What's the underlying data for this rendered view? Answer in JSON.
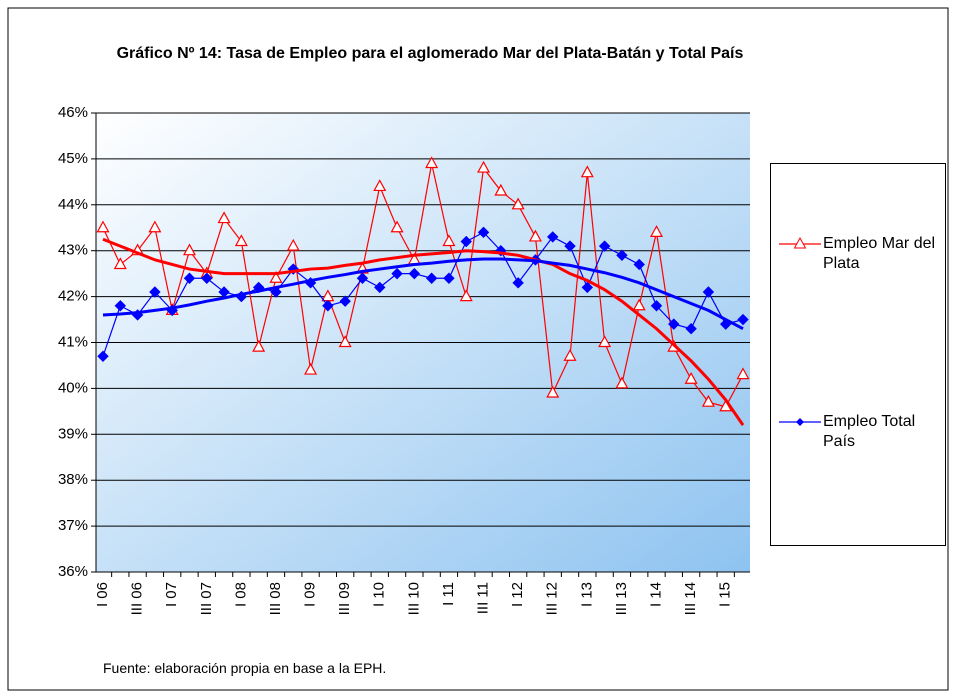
{
  "chart_data": {
    "type": "line",
    "title": "Gráfico Nº 14: Tasa de Empleo para el aglomerado Mar del Plata-Batán y Total País",
    "source": "Fuente: elaboración propia en base a la EPH.",
    "categories": [
      "I 06",
      null,
      "III 06",
      null,
      "I 07",
      null,
      "III 07",
      null,
      "I 08",
      null,
      "III 08",
      null,
      "I 09",
      null,
      "III 09",
      null,
      "I 10",
      null,
      "III 10",
      null,
      "I 11",
      null,
      "III 11",
      null,
      "I 12",
      null,
      "III 12",
      null,
      "I 13",
      null,
      "III 13",
      null,
      "I 14",
      null,
      "III 14",
      null,
      "I 15",
      null
    ],
    "series": [
      {
        "name": "Empleo Mar del Plata",
        "color": "#ff0000",
        "marker": "triangle",
        "values": [
          43.5,
          42.7,
          43.0,
          43.5,
          41.7,
          43.0,
          42.5,
          43.7,
          43.2,
          40.9,
          42.4,
          43.1,
          40.4,
          42.0,
          41.0,
          42.6,
          44.4,
          43.5,
          42.8,
          44.9,
          43.2,
          42.0,
          44.8,
          44.3,
          44.0,
          43.3,
          39.9,
          40.7,
          44.7,
          41.0,
          40.1,
          41.8,
          43.4,
          40.9,
          40.2,
          39.7,
          39.6,
          40.3
        ]
      },
      {
        "name": "Empleo Total País",
        "color": "#0000ff",
        "marker": "diamond",
        "values": [
          40.7,
          41.8,
          41.6,
          42.1,
          41.7,
          42.4,
          42.4,
          42.1,
          42.0,
          42.2,
          42.1,
          42.6,
          42.3,
          41.8,
          41.9,
          42.4,
          42.2,
          42.5,
          42.5,
          42.4,
          42.4,
          43.2,
          43.4,
          43.0,
          42.3,
          42.8,
          43.3,
          43.1,
          42.2,
          43.1,
          42.9,
          42.7,
          41.8,
          41.4,
          41.3,
          42.1,
          41.4,
          41.5
        ]
      },
      {
        "color": "#ff0000",
        "trend": true,
        "values": [
          43.25,
          43.1,
          42.95,
          42.8,
          42.7,
          42.6,
          42.55,
          42.5,
          42.5,
          42.5,
          42.5,
          42.55,
          42.6,
          42.62,
          42.68,
          42.73,
          42.8,
          42.85,
          42.9,
          42.93,
          42.96,
          43.0,
          42.98,
          42.95,
          42.9,
          42.8,
          42.7,
          42.5,
          42.35,
          42.15,
          41.9,
          41.6,
          41.3,
          40.95,
          40.6,
          40.2,
          39.75,
          39.2
        ]
      },
      {
        "color": "#0000ff",
        "trend": true,
        "values": [
          41.6,
          41.62,
          41.65,
          41.7,
          41.75,
          41.82,
          41.9,
          41.97,
          42.05,
          42.12,
          42.2,
          42.27,
          42.35,
          42.42,
          42.48,
          42.55,
          42.6,
          42.65,
          42.7,
          42.73,
          42.77,
          42.8,
          42.82,
          42.82,
          42.8,
          42.78,
          42.73,
          42.68,
          42.6,
          42.52,
          42.42,
          42.3,
          42.15,
          42.0,
          41.85,
          41.7,
          41.5,
          41.3
        ]
      }
    ],
    "ylim": [
      36,
      46
    ],
    "yticks": [
      {
        "value": 36,
        "label": "36%"
      },
      {
        "value": 37,
        "label": "37%"
      },
      {
        "value": 38,
        "label": "38%"
      },
      {
        "value": 39,
        "label": "39%"
      },
      {
        "value": 40,
        "label": "40%"
      },
      {
        "value": 41,
        "label": "41%"
      },
      {
        "value": 42,
        "label": "42%"
      },
      {
        "value": 43,
        "label": "43%"
      },
      {
        "value": 44,
        "label": "44%"
      },
      {
        "value": 45,
        "label": "45%"
      },
      {
        "value": 46,
        "label": "46%"
      }
    ],
    "grid": true,
    "legend": "right"
  }
}
